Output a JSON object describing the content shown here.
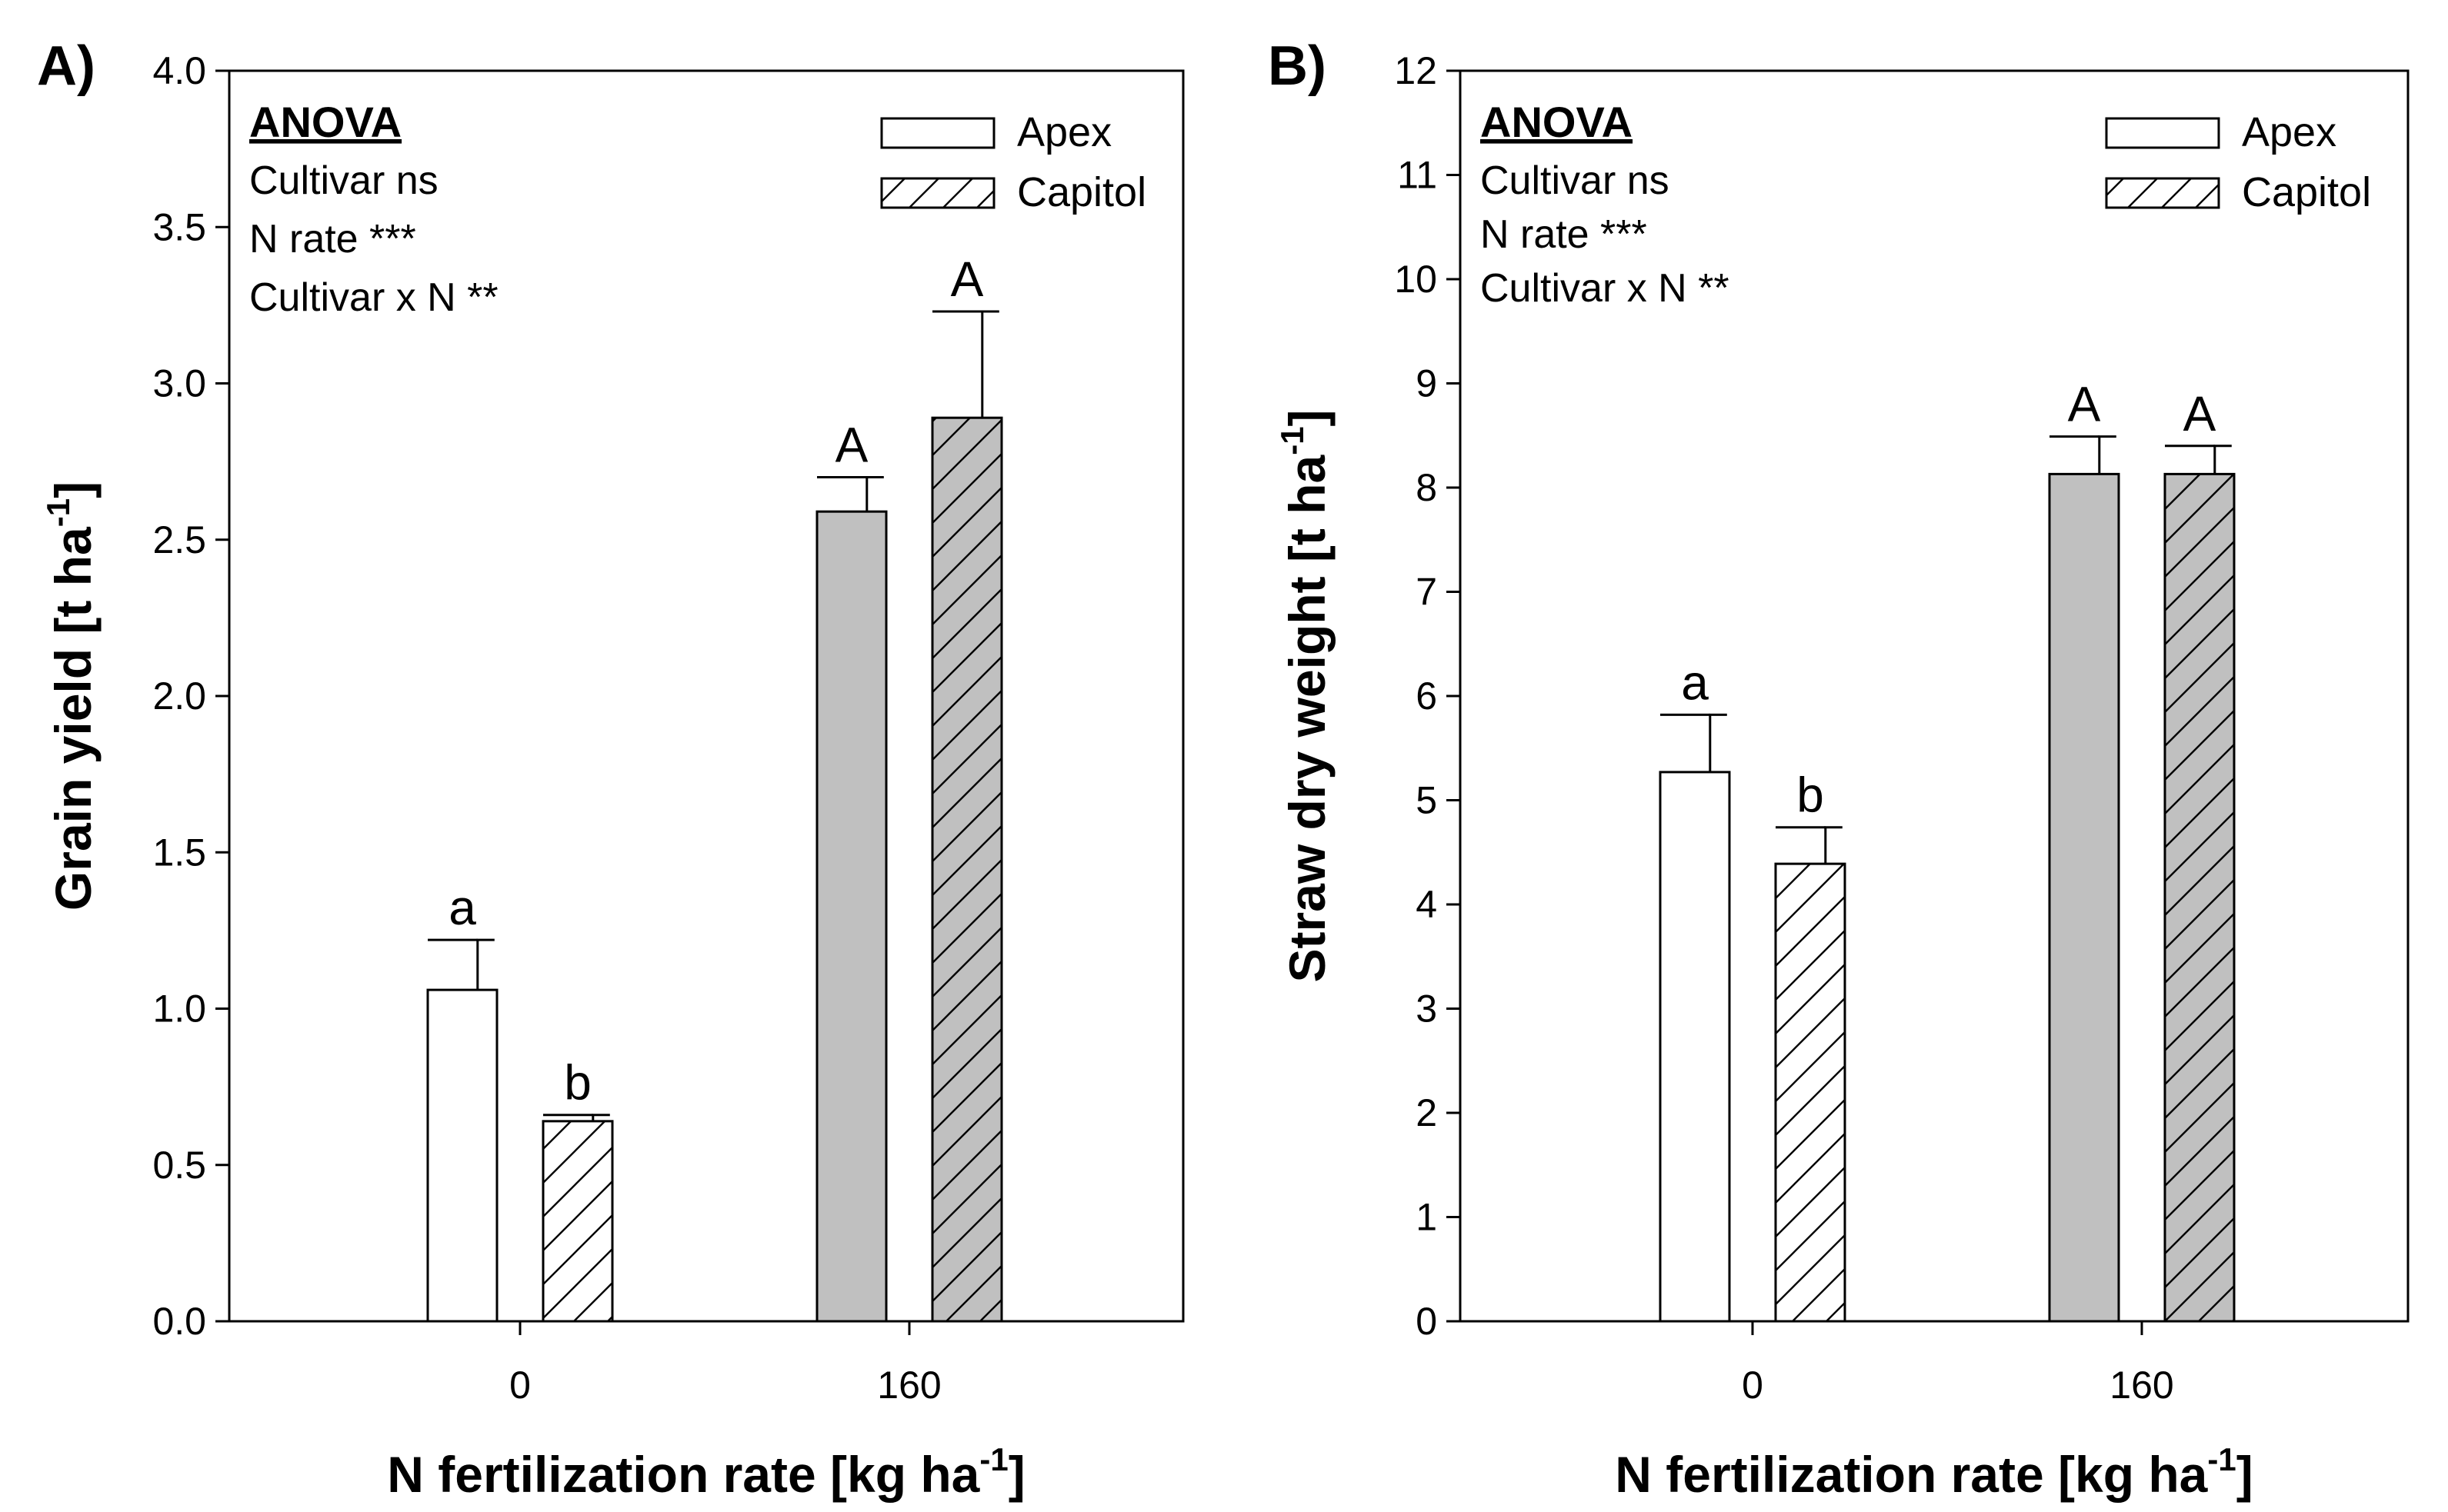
{
  "chart_data": [
    {
      "type": "bar",
      "panel_label": "A)",
      "categories": [
        "0",
        "160"
      ],
      "xlabel": "N fertilization rate [kg ha",
      "xlabel_sup": "-1",
      "xlabel_close": "]",
      "ylabel": "Grain yield [t ha",
      "ylabel_sup": "-1",
      "ylabel_close": "]",
      "ylim": [
        0,
        4.0
      ],
      "yticks": [
        "0.0",
        "0.5",
        "1.0",
        "1.5",
        "2.0",
        "2.5",
        "3.0",
        "3.5",
        "4.0"
      ],
      "series": [
        {
          "name": "Apex",
          "fill": "none",
          "values": [
            1.06,
            2.59
          ],
          "errors": [
            0.16,
            0.11
          ],
          "letters": [
            "a",
            "A"
          ]
        },
        {
          "name": "Capitol",
          "fill": "hatch",
          "values": [
            0.64,
            2.89
          ],
          "errors": [
            0.02,
            0.34
          ],
          "letters": [
            "b",
            "A"
          ]
        }
      ],
      "anova": {
        "title": "ANOVA",
        "lines": [
          "Cultivar ns",
          "N rate ***",
          "Cultivar x N **"
        ]
      },
      "legend": [
        "Apex",
        "Capitol"
      ],
      "colors": {
        "high_n_fill": "#c0c0c0",
        "low_n_fill": "#ffffff"
      }
    },
    {
      "type": "bar",
      "panel_label": "B)",
      "categories": [
        "0",
        "160"
      ],
      "xlabel": "N fertilization rate [kg ha",
      "xlabel_sup": "-1",
      "xlabel_close": "]",
      "ylabel": "Straw dry weight [t ha",
      "ylabel_sup": "-1",
      "ylabel_close": "]",
      "ylim": [
        0,
        12
      ],
      "yticks": [
        "0",
        "1",
        "2",
        "3",
        "4",
        "5",
        "6",
        "7",
        "8",
        "9",
        "10",
        "11",
        "12"
      ],
      "series": [
        {
          "name": "Apex",
          "fill": "none",
          "values": [
            5.27,
            8.13
          ],
          "errors": [
            0.55,
            0.36
          ],
          "letters": [
            "a",
            "A"
          ]
        },
        {
          "name": "Capitol",
          "fill": "hatch",
          "values": [
            4.39,
            8.13
          ],
          "errors": [
            0.35,
            0.27
          ],
          "letters": [
            "b",
            "A"
          ]
        }
      ],
      "anova": {
        "title": "ANOVA",
        "lines": [
          "Cultivar ns",
          "N rate ***",
          "Cultivar x N **"
        ]
      },
      "legend": [
        "Apex",
        "Capitol"
      ],
      "colors": {
        "high_n_fill": "#c0c0c0",
        "low_n_fill": "#ffffff"
      }
    }
  ]
}
